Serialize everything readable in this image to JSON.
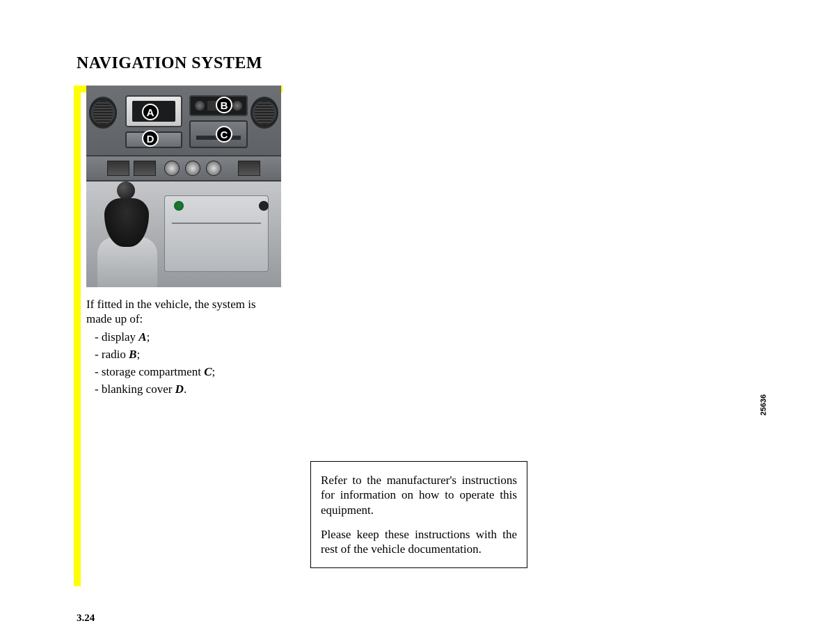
{
  "title": "NAVIGATION SYSTEM",
  "figure_number": "25636",
  "callouts": {
    "a": "A",
    "b": "B",
    "c": "C",
    "d": "D"
  },
  "body": {
    "intro": "If fitted in the vehicle, the system is made up of:",
    "items": {
      "display_pre": "- display ",
      "display_ref": "A",
      "display_post": ";",
      "radio_pre": "- radio ",
      "radio_ref": "B",
      "radio_post": ";",
      "storage_pre": "- storage compartment ",
      "storage_ref": "C",
      "storage_post": ";",
      "blanking_pre": "- blanking cover ",
      "blanking_ref": "D",
      "blanking_post": "."
    }
  },
  "note": {
    "p1": "Refer to the manufacturer's instructions for information on how to operate this equipment.",
    "p2": "Please keep these instructions with the rest of the vehicle documentation."
  },
  "page_number": "3.24",
  "colors": {
    "accent_yellow": "#ffff00",
    "text": "#000000",
    "background": "#ffffff"
  }
}
